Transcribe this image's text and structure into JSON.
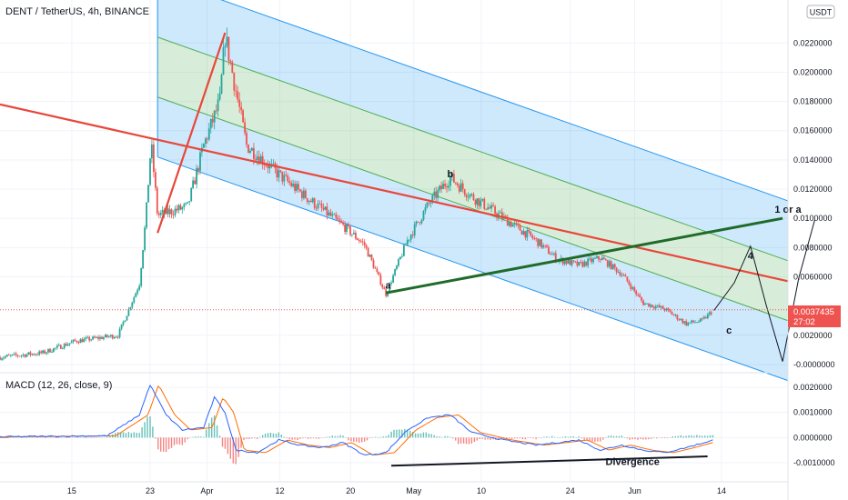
{
  "header": {
    "title": "DENT / TetherUS, 4h, BINANCE"
  },
  "currency_badge": "USDT",
  "price_tag": {
    "value": "0.0037435",
    "countdown": "27:02"
  },
  "chart_data": [
    {
      "type": "candlestick",
      "title": "DENT / TetherUS, 4h, BINANCE",
      "ylim": [
        -0.0005,
        0.0232
      ],
      "y_ticks": [
        "0.0220000",
        "0.0200000",
        "0.0180000",
        "0.0160000",
        "0.0140000",
        "0.0120000",
        "0.0100000",
        "0.0080000",
        "0.0060000",
        "0.0020000",
        "-0.0000000"
      ],
      "y_tick_values": [
        0.022,
        0.02,
        0.018,
        0.016,
        0.014,
        0.012,
        0.01,
        0.008,
        0.006,
        0.002,
        0.0
      ],
      "last_price": 0.0037435,
      "colors": {
        "up": "#26a69a",
        "down": "#ef5350",
        "trend_red": "#e8473b",
        "trend_green": "#1f6b2a",
        "channel_blue": "#2196f3",
        "channel_green": "#4caf50"
      },
      "annotations": [
        {
          "text": "a",
          "x": 22.2,
          "y": 0.0052
        },
        {
          "text": "b",
          "x": 28.0,
          "y": 0.0128
        },
        {
          "text": "c",
          "x": 54.0,
          "y": 0.0021
        },
        {
          "text": "1 or a",
          "x": 59.5,
          "y": 0.0104
        },
        {
          "text": "4",
          "x": 56.0,
          "y": 0.0072
        }
      ],
      "legend": "none"
    },
    {
      "type": "line",
      "title": "MACD (12, 26, close, 9)",
      "series": [
        {
          "role": "macd",
          "color": "#2962ff"
        },
        {
          "role": "signal",
          "color": "#ff6d00"
        },
        {
          "role": "histogram"
        }
      ],
      "ylim": [
        -0.0014,
        0.0024
      ],
      "y_ticks": [
        "0.0020000",
        "0.0010000",
        "0.0000000",
        "-0.0010000"
      ],
      "y_tick_values": [
        0.002,
        0.001,
        0.0,
        -0.001
      ],
      "annotations": [
        {
          "text": "Divergence",
          "x": 45.0,
          "y": -0.0011
        }
      ]
    }
  ],
  "x_axis": {
    "labels": [
      "15",
      "23",
      "Apr",
      "12",
      "20",
      "May",
      "10",
      "24",
      "Jun",
      "14"
    ],
    "positions": [
      -7.3,
      0.0,
      5.3,
      12.1,
      18.7,
      24.6,
      30.9,
      39.2,
      45.2,
      53.3
    ],
    "xlim": [
      -14,
      59.5
    ]
  }
}
